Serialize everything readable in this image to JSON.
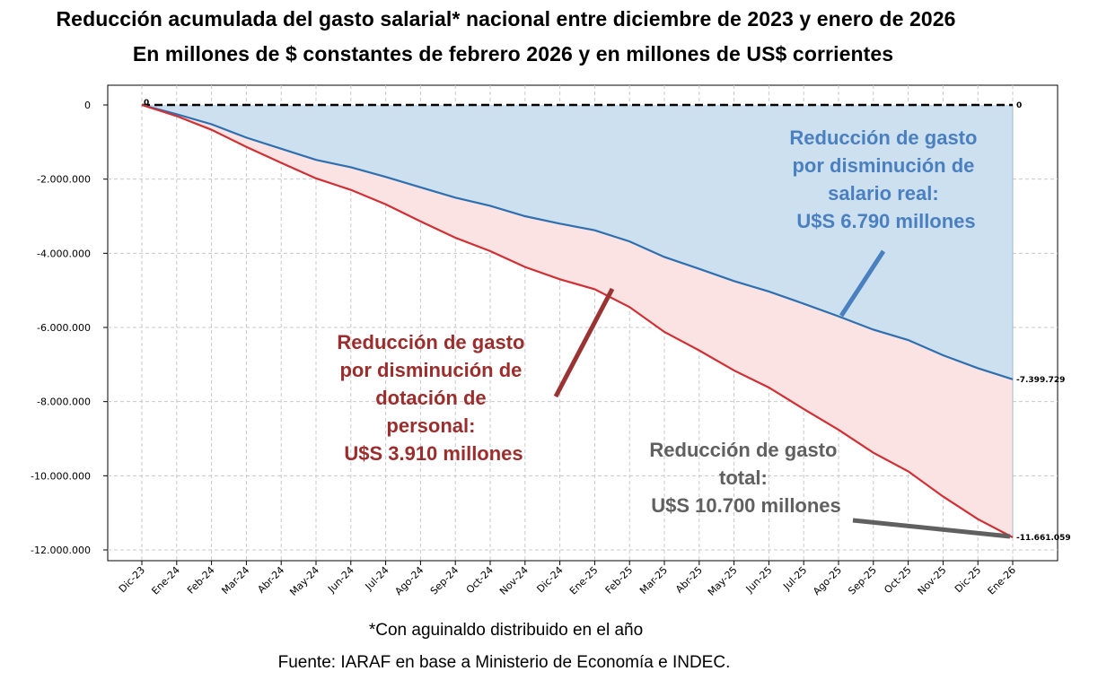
{
  "title_line1": "Reducción acumulada del gasto salarial* nacional entre diciembre de 2023 y enero de 2026",
  "title_line2": "En millones de $ constantes de febrero 2026 y en millones de US$ corrientes",
  "footnote": "*Con aguinaldo distribuido en el año",
  "source": "Fuente: IARAF en base a Ministerio de Economía e INDEC.",
  "colors": {
    "blue_line": "#2e6fb0",
    "blue_fill": "#cde0ef",
    "red_line": "#d12f33",
    "red_fill": "#fbe3e4",
    "blue_text": "#4a7fc0",
    "red_text": "#9b2d2d",
    "gray_text": "#606060"
  },
  "chart_data": {
    "type": "area",
    "categories": [
      "Dic-23",
      "Ene-24",
      "Feb-24",
      "Mar-24",
      "Abr-24",
      "May-24",
      "Jun-24",
      "Jul-24",
      "Ago-24",
      "Sep-24",
      "Oct-24",
      "Nov-24",
      "Dic-24",
      "Ene-25",
      "Feb-25",
      "Mar-25",
      "Abr-25",
      "May-25",
      "Jun-25",
      "Jul-25",
      "Ago-25",
      "Sep-25",
      "Oct-25",
      "Nov-25",
      "Dic-25",
      "Ene-26"
    ],
    "series": [
      {
        "name": "Reducción por disminución de salario real",
        "color": "#2e6fb0",
        "values": [
          0,
          -250000,
          -520000,
          -880000,
          -1180000,
          -1480000,
          -1680000,
          -1940000,
          -2220000,
          -2500000,
          -2720000,
          -3000000,
          -3200000,
          -3380000,
          -3680000,
          -4100000,
          -4420000,
          -4750000,
          -5030000,
          -5360000,
          -5700000,
          -6060000,
          -6340000,
          -6750000,
          -7100000,
          -7399729
        ]
      },
      {
        "name": "Reducción total",
        "color": "#d12f33",
        "values": [
          0,
          -300000,
          -670000,
          -1130000,
          -1560000,
          -1980000,
          -2290000,
          -2680000,
          -3140000,
          -3580000,
          -3940000,
          -4370000,
          -4700000,
          -4970000,
          -5450000,
          -6120000,
          -6620000,
          -7160000,
          -7620000,
          -8200000,
          -8760000,
          -9380000,
          -9880000,
          -10560000,
          -11170000,
          -11661059
        ]
      }
    ],
    "zero_line": 0,
    "ylim": [
      -12400000,
      300000
    ],
    "yticks": [
      0,
      -2000000,
      -4000000,
      -6000000,
      -8000000,
      -10000000,
      -12000000
    ],
    "ytick_labels": [
      "0",
      "-2.000.000",
      "-4.000.000",
      "-6.000.000",
      "-8.000.000",
      "-10.000.000",
      "-12.000.000"
    ],
    "end_labels": {
      "zero_start": "0",
      "zero_end": "0",
      "blue_end": "-7.399.729",
      "red_end": "-11.661.059"
    },
    "annotations": {
      "blue": [
        "Reducción de gasto",
        "por disminución de",
        "salario real:",
        "U$S 6.790 millones"
      ],
      "red": [
        "Reducción de gasto",
        "por disminución de",
        "dotación de",
        "personal:",
        "U$S 3.910 millones"
      ],
      "gray": [
        "Reducción de gasto",
        "total:",
        "U$S 10.700 millones"
      ]
    },
    "grid": true
  }
}
